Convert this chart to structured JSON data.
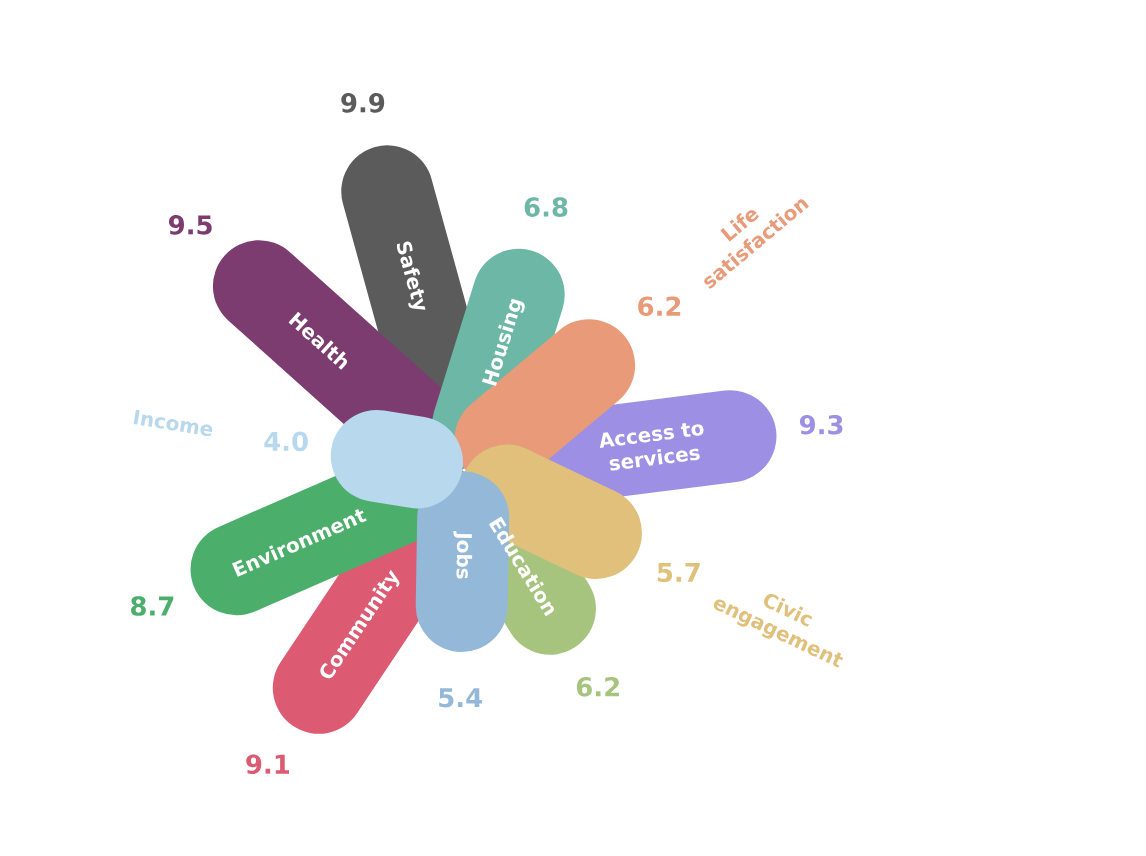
{
  "chart_data": {
    "type": "other",
    "categories": [
      "Safety",
      "Housing",
      "Life satisfaction",
      "Access to services",
      "Civic engagement",
      "Education",
      "Jobs",
      "Community",
      "Environment",
      "Income",
      "Health"
    ],
    "values": [
      9.9,
      6.8,
      6.2,
      9.3,
      5.7,
      6.2,
      5.4,
      9.1,
      8.7,
      4.0,
      9.5
    ],
    "colors": [
      "#5b5b5b",
      "#6db7a6",
      "#e99b79",
      "#9d8fe3",
      "#e0c07b",
      "#a7c47f",
      "#94b8d7",
      "#dc5b72",
      "#4cae6b",
      "#b7d8ed",
      "#7c3c6f"
    ],
    "value_labels": [
      "9.9",
      "6.8",
      "6.2",
      "9.3",
      "5.7",
      "6.2",
      "5.4",
      "9.1",
      "8.7",
      "4.0",
      "9.5"
    ]
  }
}
